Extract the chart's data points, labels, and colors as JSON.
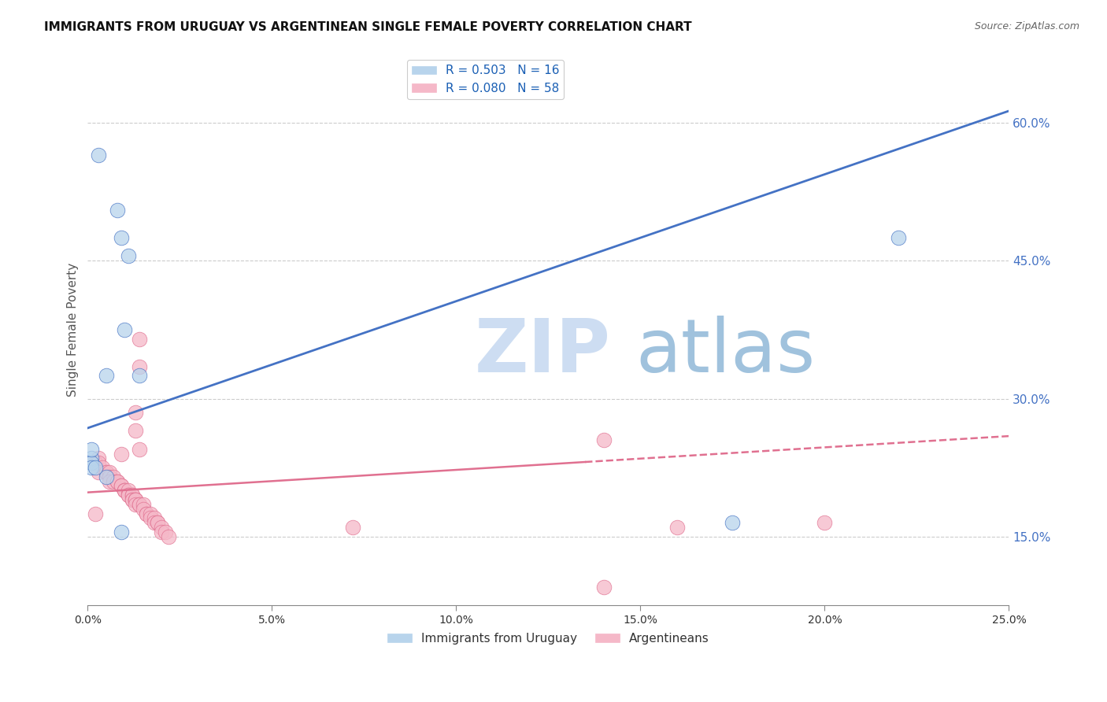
{
  "title": "IMMIGRANTS FROM URUGUAY VS ARGENTINEAN SINGLE FEMALE POVERTY CORRELATION CHART",
  "source": "Source: ZipAtlas.com",
  "ylabel": "Single Female Poverty",
  "ylabel_right_ticks": [
    "15.0%",
    "30.0%",
    "45.0%",
    "60.0%"
  ],
  "ylabel_right_vals": [
    0.15,
    0.3,
    0.45,
    0.6
  ],
  "xmin": 0.0,
  "xmax": 0.25,
  "ymin": 0.075,
  "ymax": 0.675,
  "watermark_zip": "ZIP",
  "watermark_atlas": "atlas",
  "legend1_label": "R = 0.503   N = 16",
  "legend2_label": "R = 0.080   N = 58",
  "legend1_color": "#b8d4ec",
  "legend2_color": "#f5b8c8",
  "blue_line_color": "#4472c4",
  "pink_line_color": "#e07090",
  "blue_scatter_color": "#b8d4ec",
  "pink_scatter_color": "#f5b8c8",
  "blue_points": [
    [
      0.003,
      0.565
    ],
    [
      0.008,
      0.505
    ],
    [
      0.009,
      0.475
    ],
    [
      0.011,
      0.455
    ],
    [
      0.01,
      0.375
    ],
    [
      0.005,
      0.325
    ],
    [
      0.014,
      0.325
    ],
    [
      0.005,
      0.215
    ],
    [
      0.001,
      0.235
    ],
    [
      0.001,
      0.23
    ],
    [
      0.001,
      0.225
    ],
    [
      0.002,
      0.225
    ],
    [
      0.009,
      0.155
    ],
    [
      0.001,
      0.245
    ],
    [
      0.22,
      0.475
    ],
    [
      0.175,
      0.165
    ]
  ],
  "pink_points": [
    [
      0.014,
      0.365
    ],
    [
      0.014,
      0.335
    ],
    [
      0.013,
      0.285
    ],
    [
      0.013,
      0.265
    ],
    [
      0.014,
      0.245
    ],
    [
      0.009,
      0.24
    ],
    [
      0.003,
      0.235
    ],
    [
      0.002,
      0.23
    ],
    [
      0.003,
      0.23
    ],
    [
      0.004,
      0.225
    ],
    [
      0.003,
      0.22
    ],
    [
      0.005,
      0.22
    ],
    [
      0.005,
      0.22
    ],
    [
      0.006,
      0.22
    ],
    [
      0.006,
      0.215
    ],
    [
      0.007,
      0.215
    ],
    [
      0.006,
      0.21
    ],
    [
      0.007,
      0.21
    ],
    [
      0.008,
      0.21
    ],
    [
      0.008,
      0.21
    ],
    [
      0.009,
      0.205
    ],
    [
      0.009,
      0.205
    ],
    [
      0.01,
      0.2
    ],
    [
      0.01,
      0.2
    ],
    [
      0.01,
      0.2
    ],
    [
      0.011,
      0.2
    ],
    [
      0.011,
      0.195
    ],
    [
      0.011,
      0.195
    ],
    [
      0.012,
      0.195
    ],
    [
      0.012,
      0.195
    ],
    [
      0.012,
      0.19
    ],
    [
      0.012,
      0.19
    ],
    [
      0.013,
      0.19
    ],
    [
      0.013,
      0.19
    ],
    [
      0.013,
      0.19
    ],
    [
      0.013,
      0.185
    ],
    [
      0.014,
      0.185
    ],
    [
      0.014,
      0.185
    ],
    [
      0.015,
      0.185
    ],
    [
      0.015,
      0.18
    ],
    [
      0.016,
      0.175
    ],
    [
      0.016,
      0.175
    ],
    [
      0.017,
      0.175
    ],
    [
      0.017,
      0.17
    ],
    [
      0.018,
      0.17
    ],
    [
      0.018,
      0.165
    ],
    [
      0.019,
      0.165
    ],
    [
      0.019,
      0.165
    ],
    [
      0.02,
      0.16
    ],
    [
      0.02,
      0.155
    ],
    [
      0.021,
      0.155
    ],
    [
      0.022,
      0.15
    ],
    [
      0.14,
      0.255
    ],
    [
      0.072,
      0.16
    ],
    [
      0.16,
      0.16
    ],
    [
      0.2,
      0.165
    ],
    [
      0.14,
      0.095
    ],
    [
      0.002,
      0.175
    ]
  ],
  "blue_regression": {
    "slope": 1.38,
    "intercept": 0.268
  },
  "pink_regression_solid_end": 0.135,
  "pink_regression": {
    "slope": 0.245,
    "intercept": 0.198
  },
  "grid_color": "#cccccc",
  "background_color": "#ffffff",
  "xtick_vals": [
    0.0,
    0.05,
    0.1,
    0.15,
    0.2,
    0.25
  ],
  "xtick_labels": [
    "0.0%",
    "5.0%",
    "10.0%",
    "15.0%",
    "20.0%",
    "25.0%"
  ]
}
